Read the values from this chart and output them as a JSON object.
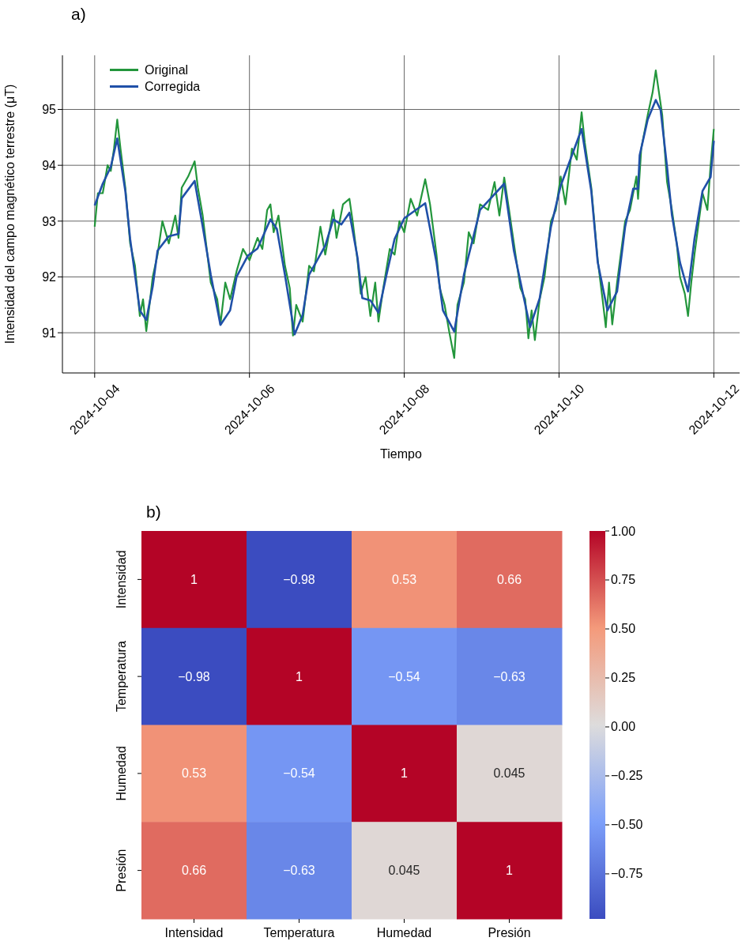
{
  "chart_data": [
    {
      "type": "line",
      "title": "a)",
      "xlabel": "Tiempo",
      "ylabel": "Intensidad del campo magnético terrestre (μT)",
      "xlim": [
        "2024-10-03T14:00",
        "2024-10-12T08:00"
      ],
      "xticks": [
        "2024-10-04",
        "2024-10-06",
        "2024-10-08",
        "2024-10-10",
        "2024-10-12"
      ],
      "ylim": [
        90.28,
        95.97
      ],
      "yticks": [
        91,
        92,
        93,
        94,
        95
      ],
      "grid": true,
      "legend": "top left",
      "series": [
        {
          "name": "Original",
          "color": "#23963c",
          "x": [
            "2024-10-04T00:00",
            "2024-10-04T01:00",
            "2024-10-04T02:30",
            "2024-10-04T04:00",
            "2024-10-04T05:00",
            "2024-10-04T06:00",
            "2024-10-04T07:00",
            "2024-10-04T08:00",
            "2024-10-04T09:30",
            "2024-10-04T11:00",
            "2024-10-04T12:30",
            "2024-10-04T14:00",
            "2024-10-04T15:00",
            "2024-10-04T16:00",
            "2024-10-04T17:00",
            "2024-10-04T18:00",
            "2024-10-04T19:30",
            "2024-10-04T21:00",
            "2024-10-04T23:00",
            "2024-10-05T01:00",
            "2024-10-05T02:00",
            "2024-10-05T03:00",
            "2024-10-05T05:00",
            "2024-10-05T07:00",
            "2024-10-05T08:00",
            "2024-10-05T09:30",
            "2024-10-05T12:00",
            "2024-10-05T14:00",
            "2024-10-05T15:00",
            "2024-10-05T16:30",
            "2024-10-05T18:00",
            "2024-10-05T20:00",
            "2024-10-05T22:00",
            "2024-10-06T00:00",
            "2024-10-06T02:30",
            "2024-10-06T04:00",
            "2024-10-06T05:30",
            "2024-10-06T06:30",
            "2024-10-06T07:30",
            "2024-10-06T09:00",
            "2024-10-06T11:00",
            "2024-10-06T12:30",
            "2024-10-06T13:30",
            "2024-10-06T14:30",
            "2024-10-06T16:30",
            "2024-10-06T18:30",
            "2024-10-06T20:00",
            "2024-10-06T22:00",
            "2024-10-06T23:30",
            "2024-10-07T02:00",
            "2024-10-07T03:00",
            "2024-10-07T05:00",
            "2024-10-07T07:00",
            "2024-10-07T08:00",
            "2024-10-07T09:30",
            "2024-10-07T10:30",
            "2024-10-07T12:00",
            "2024-10-07T13:30",
            "2024-10-07T15:00",
            "2024-10-07T16:00",
            "2024-10-07T17:30",
            "2024-10-07T19:30",
            "2024-10-07T21:00",
            "2024-10-07T22:30",
            "2024-10-08T00:00",
            "2024-10-08T02:00",
            "2024-10-08T04:00",
            "2024-10-08T06:30",
            "2024-10-08T08:00",
            "2024-10-08T10:00",
            "2024-10-08T11:00",
            "2024-10-08T12:30",
            "2024-10-08T14:00",
            "2024-10-08T15:30",
            "2024-10-08T16:30",
            "2024-10-08T18:30",
            "2024-10-08T20:00",
            "2024-10-08T21:30",
            "2024-10-08T23:30",
            "2024-10-09T02:00",
            "2024-10-09T04:00",
            "2024-10-09T05:30",
            "2024-10-09T07:00",
            "2024-10-09T08:30",
            "2024-10-09T10:00",
            "2024-10-09T12:00",
            "2024-10-09T13:30",
            "2024-10-09T14:30",
            "2024-10-09T15:30",
            "2024-10-09T16:30",
            "2024-10-09T18:00",
            "2024-10-09T19:30",
            "2024-10-09T21:30",
            "2024-10-09T23:00",
            "2024-10-10T00:30",
            "2024-10-10T02:00",
            "2024-10-10T04:00",
            "2024-10-10T05:30",
            "2024-10-10T07:00",
            "2024-10-10T08:00",
            "2024-10-10T10:00",
            "2024-10-10T12:00",
            "2024-10-10T13:30",
            "2024-10-10T14:30",
            "2024-10-10T15:30",
            "2024-10-10T16:30",
            "2024-10-10T18:00",
            "2024-10-10T20:30",
            "2024-10-10T22:00",
            "2024-10-11T00:00",
            "2024-10-11T00:30",
            "2024-10-11T01:30",
            "2024-10-11T03:30",
            "2024-10-11T05:00",
            "2024-10-11T06:00",
            "2024-10-11T07:00",
            "2024-10-11T08:00",
            "2024-10-11T09:30",
            "2024-10-11T11:00",
            "2024-10-11T12:30",
            "2024-10-11T13:30",
            "2024-10-11T15:00",
            "2024-10-11T16:00",
            "2024-10-11T17:00",
            "2024-10-11T18:00",
            "2024-10-11T20:30",
            "2024-10-11T22:00",
            "2024-10-11T23:00",
            "2024-10-12T00:00"
          ],
          "values": [
            92.9,
            93.5,
            93.5,
            94.0,
            93.9,
            94.3,
            94.82,
            94.3,
            93.6,
            92.6,
            92.2,
            91.3,
            91.6,
            91.03,
            91.5,
            92.0,
            92.4,
            93.0,
            92.6,
            93.1,
            92.7,
            93.6,
            93.8,
            94.07,
            93.6,
            93.1,
            91.9,
            91.6,
            91.15,
            91.9,
            91.6,
            92.1,
            92.5,
            92.3,
            92.7,
            92.5,
            93.2,
            93.3,
            92.8,
            93.1,
            92.2,
            91.8,
            90.95,
            91.5,
            91.2,
            92.2,
            92.1,
            92.9,
            92.4,
            93.2,
            92.7,
            93.3,
            93.4,
            93.0,
            92.3,
            91.7,
            92.0,
            91.3,
            91.9,
            91.2,
            91.8,
            92.5,
            92.4,
            93.0,
            92.8,
            93.4,
            93.1,
            93.75,
            93.3,
            92.4,
            91.8,
            91.5,
            91.0,
            90.55,
            91.5,
            91.9,
            92.8,
            92.6,
            93.3,
            93.2,
            93.7,
            93.1,
            93.78,
            93.2,
            92.6,
            91.8,
            91.6,
            90.9,
            91.4,
            90.87,
            91.6,
            92.0,
            93.0,
            93.2,
            93.8,
            93.3,
            94.3,
            94.1,
            94.95,
            94.4,
            93.6,
            92.3,
            91.6,
            91.1,
            91.9,
            91.15,
            91.9,
            93.0,
            93.2,
            93.8,
            93.4,
            94.3,
            94.9,
            95.3,
            95.7,
            95.3,
            94.9,
            93.7,
            93.2,
            92.6,
            92.0,
            91.7,
            91.3,
            91.9,
            92.4,
            93.5,
            93.2,
            94.0,
            94.65
          ]
        },
        {
          "name": "Corregida",
          "color": "#2050a8",
          "x": [
            "2024-10-04T00:00",
            "2024-10-04T02:30",
            "2024-10-04T05:00",
            "2024-10-04T07:00",
            "2024-10-04T09:30",
            "2024-10-04T11:00",
            "2024-10-04T12:30",
            "2024-10-04T14:00",
            "2024-10-04T16:00",
            "2024-10-04T18:00",
            "2024-10-04T19:30",
            "2024-10-04T23:00",
            "2024-10-05T02:00",
            "2024-10-05T03:00",
            "2024-10-05T07:00",
            "2024-10-05T09:30",
            "2024-10-05T12:00",
            "2024-10-05T15:00",
            "2024-10-05T18:00",
            "2024-10-05T20:00",
            "2024-10-05T23:30",
            "2024-10-06T02:30",
            "2024-10-06T06:30",
            "2024-10-06T08:30",
            "2024-10-06T11:00",
            "2024-10-06T14:00",
            "2024-10-06T16:30",
            "2024-10-06T18:30",
            "2024-10-06T23:30",
            "2024-10-07T02:00",
            "2024-10-07T04:30",
            "2024-10-07T07:00",
            "2024-10-07T09:30",
            "2024-10-07T11:00",
            "2024-10-07T13:30",
            "2024-10-07T16:00",
            "2024-10-07T18:30",
            "2024-10-07T21:00",
            "2024-10-08T00:00",
            "2024-10-08T06:30",
            "2024-10-08T10:00",
            "2024-10-08T12:00",
            "2024-10-08T15:30",
            "2024-10-08T18:30",
            "2024-10-08T23:30",
            "2024-10-09T07:00",
            "2024-10-09T10:00",
            "2024-10-09T15:00",
            "2024-10-09T18:00",
            "2024-10-09T21:30",
            "2024-10-10T00:30",
            "2024-10-10T04:00",
            "2024-10-10T07:00",
            "2024-10-10T10:00",
            "2024-10-10T12:00",
            "2024-10-10T15:00",
            "2024-10-10T18:00",
            "2024-10-10T20:30",
            "2024-10-10T23:00",
            "2024-10-11T00:30",
            "2024-10-11T01:00",
            "2024-10-11T03:30",
            "2024-10-11T06:00",
            "2024-10-11T07:30",
            "2024-10-11T09:30",
            "2024-10-11T11:00",
            "2024-10-11T13:30",
            "2024-10-11T16:00",
            "2024-10-11T18:00",
            "2024-10-11T20:30",
            "2024-10-11T23:00",
            "2024-10-12T00:00"
          ],
          "values": [
            93.28,
            93.67,
            93.97,
            94.48,
            93.54,
            92.68,
            92.04,
            91.4,
            91.23,
            91.83,
            92.47,
            92.73,
            92.77,
            93.41,
            93.72,
            92.9,
            92.04,
            91.14,
            91.4,
            92.0,
            92.38,
            92.51,
            93.03,
            92.86,
            92.04,
            90.97,
            91.32,
            92.04,
            92.56,
            93.03,
            92.94,
            93.15,
            92.35,
            91.62,
            91.58,
            91.36,
            92.04,
            92.68,
            93.05,
            93.32,
            92.26,
            91.4,
            91.02,
            92.04,
            93.2,
            93.67,
            92.47,
            91.1,
            91.62,
            92.9,
            93.63,
            94.18,
            94.65,
            93.54,
            92.26,
            91.4,
            91.74,
            92.9,
            93.58,
            93.58,
            94.18,
            94.82,
            95.17,
            94.99,
            93.97,
            93.11,
            92.26,
            91.74,
            92.68,
            93.54,
            93.79,
            94.44
          ]
        }
      ]
    },
    {
      "type": "heatmap",
      "title": "b)",
      "categories": [
        "Intensidad",
        "Temperatura",
        "Humedad",
        "Presión"
      ],
      "y_categories": [
        "Intensidad",
        "Temperatura",
        "Humedad",
        "Presión"
      ],
      "cells": [
        [
          1,
          -0.98,
          0.53,
          0.66
        ],
        [
          -0.98,
          1,
          -0.54,
          -0.63
        ],
        [
          0.53,
          -0.54,
          1,
          0.045
        ],
        [
          0.66,
          -0.63,
          0.045,
          1
        ]
      ],
      "cell_labels": [
        [
          "1",
          "−0.98",
          "0.53",
          "0.66"
        ],
        [
          "−0.98",
          "1",
          "−0.54",
          "−0.63"
        ],
        [
          "0.53",
          "−0.54",
          "1",
          "0.045"
        ],
        [
          "0.66",
          "−0.63",
          "0.045",
          "1"
        ]
      ],
      "clim": [
        -0.98,
        1
      ],
      "cticks": [
        {
          "value": 1,
          "label": "1.00"
        },
        0.75,
        {
          "value": 0.5,
          "label": "0.50"
        },
        0.25,
        {
          "value": 0,
          "label": "0.00"
        },
        {
          "value": -0.25,
          "label": "−0.25"
        },
        {
          "value": -0.5,
          "label": "−0.50"
        },
        {
          "value": -0.75,
          "label": "−0.75"
        }
      ]
    }
  ]
}
